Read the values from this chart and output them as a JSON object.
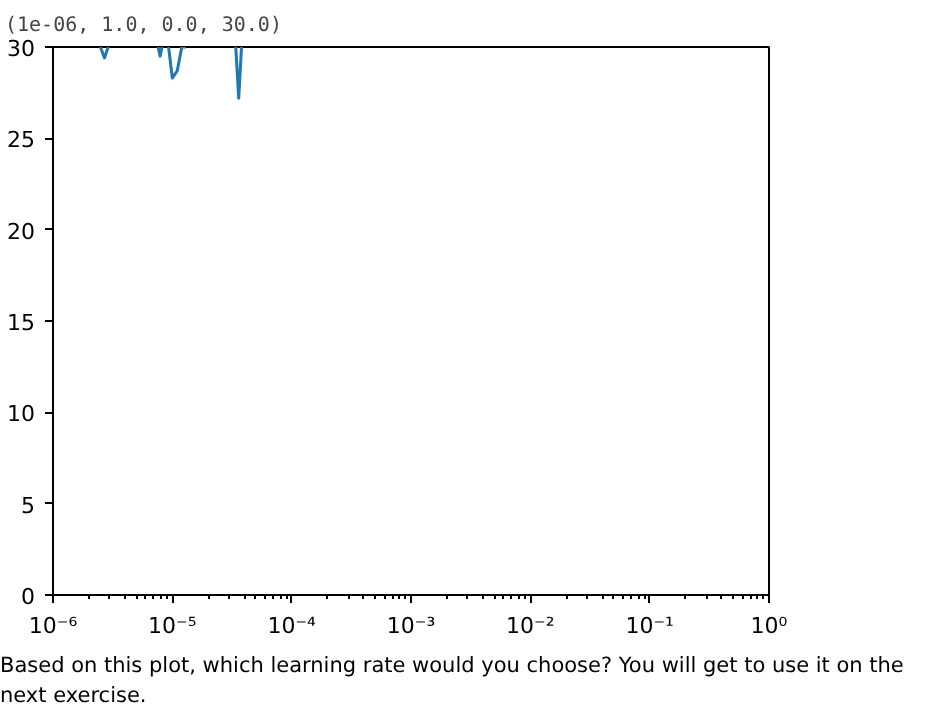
{
  "chart_data": {
    "type": "line",
    "title": "(1e-06, 1.0, 0.0, 30.0)",
    "annotations": [
      "Based on this plot, which learning rate would you choose? You will get to use it on the next exercise."
    ],
    "x": [
      2.5e-06,
      2.7e-06,
      2.9e-06,
      null,
      7.6e-06,
      7.9e-06,
      8.2e-06,
      null,
      9.3e-06,
      1e-05,
      1.1e-05,
      1.2e-05,
      1.3e-05,
      null,
      3.4e-05,
      3.6e-05,
      3.8e-05
    ],
    "series": [
      {
        "color": "#1f77b4",
        "values": [
          30,
          29.4,
          30,
          null,
          30,
          29.5,
          30,
          null,
          30,
          28.3,
          28.7,
          30,
          30,
          null,
          30,
          27.2,
          30
        ]
      }
    ],
    "log": "x",
    "xlim": [
      1e-06,
      1
    ],
    "xticks": [
      {
        "value": 1e-06,
        "label": "10⁻⁶"
      },
      {
        "value": 1e-05,
        "label": "10⁻⁵"
      },
      {
        "value": 0.0001,
        "label": "10⁻⁴"
      },
      {
        "value": 0.001,
        "label": "10⁻³"
      },
      {
        "value": 0.01,
        "label": "10⁻²"
      },
      {
        "value": 0.1,
        "label": "10⁻¹"
      },
      {
        "value": 1,
        "label": "10⁰"
      }
    ],
    "ylim": [
      0,
      30
    ],
    "yticks": [
      0,
      5,
      10,
      15,
      20,
      25,
      30
    ],
    "grid": false
  }
}
